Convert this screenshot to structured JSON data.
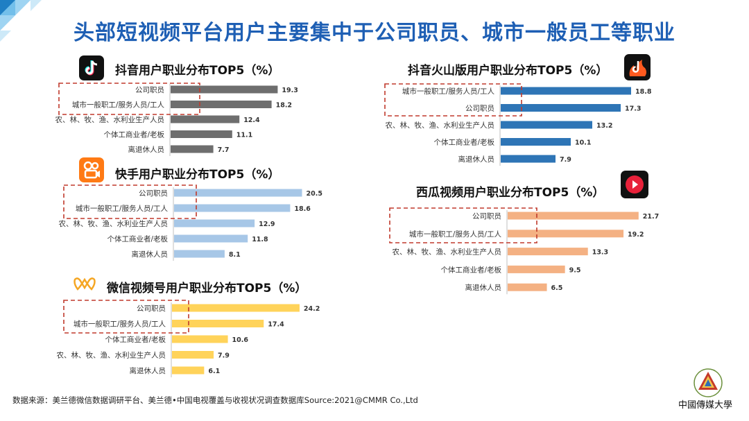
{
  "title": "头部短视频平台用户主要集中于公司职员、城市一般员工等职业",
  "footer": "数据来源：美兰德微信数据调研平台、美兰德•中国电视覆盖与收视状况调查数据库Source:2021@CMMR Co.,Ltd",
  "logo_text": "中國傳媒大學",
  "colors": {
    "title": "#1e5fb4",
    "highlight_box": "#c0392b",
    "douyin": "#6e6e6e",
    "kuaishou": "#a7c7e7",
    "weixin": "#ffd35a",
    "huoshan": "#2e75b6",
    "xigua": "#f4b183"
  },
  "chart_data": [
    {
      "type": "bar",
      "orientation": "horizontal",
      "title": "抖音用户职业分布TOP5（%）",
      "icon": "douyin-icon",
      "categories": [
        "公司职员",
        "城市一般职工/服务人员/工人",
        "农、林、牧、渔、水利业生产人员",
        "个体工商业者/老板",
        "离退休人员"
      ],
      "values": [
        19.3,
        18.2,
        12.4,
        11.1,
        7.7
      ],
      "xlim": [
        0,
        25
      ],
      "highlight": [
        0,
        1
      ],
      "color": "#6e6e6e"
    },
    {
      "type": "bar",
      "orientation": "horizontal",
      "title": "快手用户职业分布TOP5（%）",
      "icon": "kuaishou-icon",
      "categories": [
        "公司职员",
        "城市一般职工/服务人员/工人",
        "农、林、牧、渔、水利业生产人员",
        "个体工商业者/老板",
        "离退休人员"
      ],
      "values": [
        20.5,
        18.6,
        12.9,
        11.8,
        8.1
      ],
      "xlim": [
        0,
        25
      ],
      "highlight": [
        0,
        1
      ],
      "color": "#a7c7e7"
    },
    {
      "type": "bar",
      "orientation": "horizontal",
      "title": "微信视频号用户职业分布TOP5（%）",
      "icon": "weixin-channels-icon",
      "categories": [
        "公司职员",
        "城市一般职工/服务人员/工人",
        "个体工商业者/老板",
        "农、林、牧、渔、水利业生产人员",
        "离退休人员"
      ],
      "values": [
        24.2,
        17.4,
        10.6,
        7.9,
        6.1
      ],
      "xlim": [
        0,
        25
      ],
      "highlight": [
        0,
        1
      ],
      "color": "#ffd35a"
    },
    {
      "type": "bar",
      "orientation": "horizontal",
      "title": "抖音火山版用户职业分布TOP5（%）",
      "icon": "huoshan-icon",
      "categories": [
        "城市一般职工/服务人员/工人",
        "公司职员",
        "农、林、牧、渔、水利业生产人员",
        "个体工商业者/老板",
        "离退休人员"
      ],
      "values": [
        18.8,
        17.3,
        13.2,
        10.1,
        7.9
      ],
      "xlim": [
        0,
        25
      ],
      "highlight": [
        0,
        1
      ],
      "color": "#2e75b6"
    },
    {
      "type": "bar",
      "orientation": "horizontal",
      "title": "西瓜视频用户职业分布TOP5（%）",
      "icon": "xigua-icon",
      "categories": [
        "公司职员",
        "城市一般职工/服务人员/工人",
        "农、林、牧、渔、水利业生产人员",
        "个体工商业者/老板",
        "离退休人员"
      ],
      "values": [
        21.7,
        19.2,
        13.3,
        9.5,
        6.5
      ],
      "xlim": [
        0,
        25
      ],
      "highlight": [
        0,
        1
      ],
      "color": "#f4b183"
    }
  ]
}
